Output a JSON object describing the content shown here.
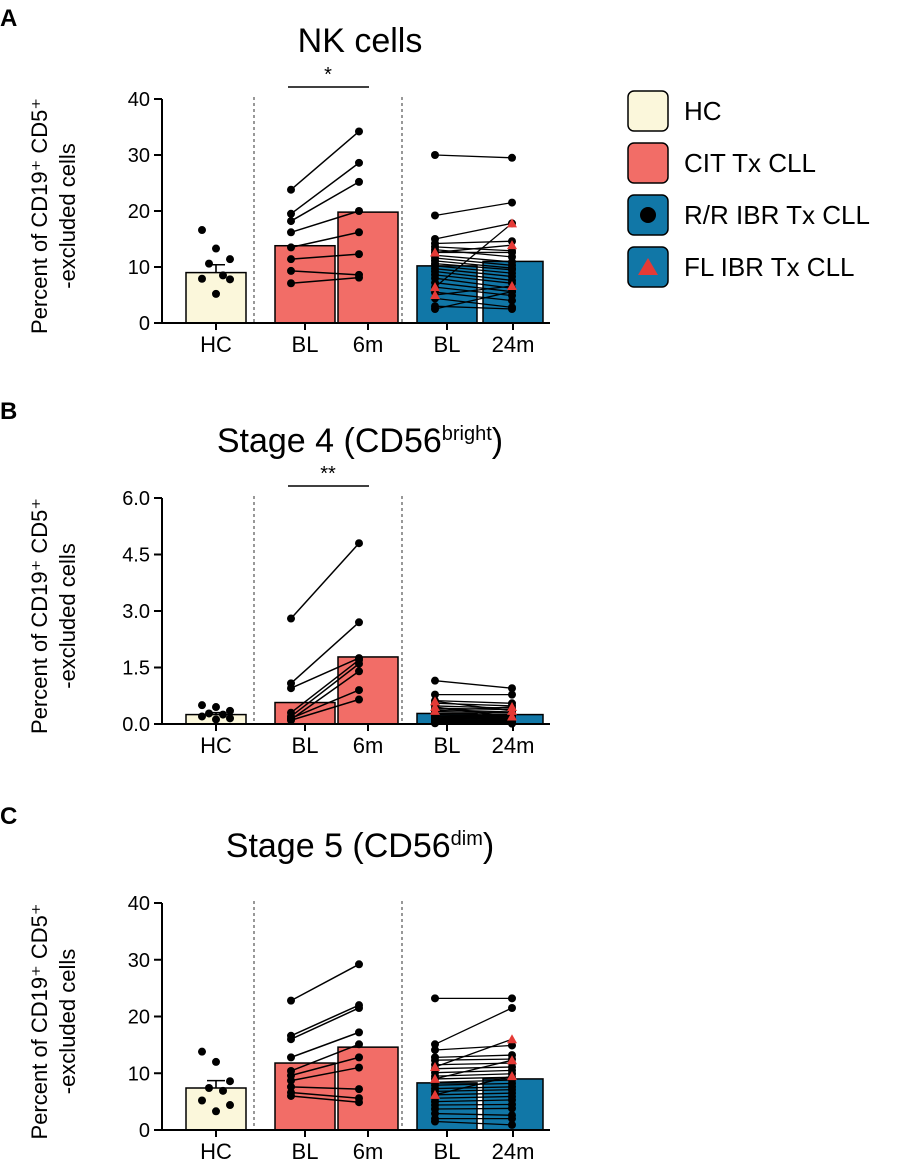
{
  "colors": {
    "hc": "#fbf7db",
    "cit": "#f26d67",
    "ibr": "#1177a7",
    "fl_marker": "#e53a36",
    "axis": "#000000"
  },
  "categories": [
    "HC",
    "BL",
    "6m",
    "BL",
    "24m"
  ],
  "legend": {
    "items": [
      {
        "label": "HC",
        "fill": "#fbf7db",
        "marker": "none"
      },
      {
        "label": "CIT Tx CLL",
        "fill": "#f26d67",
        "marker": "none"
      },
      {
        "label": "R/R IBR Tx CLL",
        "fill": "#1177a7",
        "marker": "circle"
      },
      {
        "label": "FL IBR Tx CLL",
        "fill": "#1177a7",
        "marker": "triangle"
      }
    ]
  },
  "chart_data": [
    {
      "type": "bar",
      "panel": "A",
      "title": "NK cells",
      "title_sup": "",
      "ylabel_line1": "Percent of CD19⁺ CD5⁺",
      "ylabel_line2": "-excluded cells",
      "ylim": [
        0,
        40
      ],
      "yticks": [
        "0",
        "10",
        "20",
        "30",
        "40"
      ],
      "ytick_values": [
        0,
        10,
        20,
        30,
        40
      ],
      "bars": [
        9.0,
        13.8,
        19.8,
        10.2,
        11.0
      ],
      "sem": [
        1.4,
        0,
        0,
        0,
        0
      ],
      "significance": "*",
      "hc_points": [
        16.6,
        13.3,
        11.4,
        10.6,
        8.5,
        7.9,
        7.8,
        5.2
      ],
      "cit_pairs": [
        [
          23.8,
          34.2
        ],
        [
          19.5,
          28.6
        ],
        [
          18.2,
          25.2
        ],
        [
          16.2,
          20.0
        ],
        [
          13.5,
          16.2
        ],
        [
          11.4,
          12.3
        ],
        [
          9.3,
          8.6
        ],
        [
          7.1,
          8.1
        ]
      ],
      "ibr_pairs": [
        [
          30.0,
          29.5
        ],
        [
          19.2,
          21.5
        ],
        [
          15.0,
          17.8
        ],
        [
          14.2,
          14.6
        ],
        [
          13.6,
          12.9
        ],
        [
          13.1,
          11.8
        ],
        [
          12.6,
          12.6
        ],
        [
          12.1,
          10.9
        ],
        [
          11.6,
          10.3
        ],
        [
          11.1,
          9.8
        ],
        [
          10.6,
          9.5
        ],
        [
          10.2,
          8.9
        ],
        [
          9.7,
          8.3
        ],
        [
          9.2,
          7.6
        ],
        [
          8.6,
          7.1
        ],
        [
          8.0,
          6.2
        ],
        [
          7.2,
          5.6
        ],
        [
          6.4,
          4.9
        ],
        [
          5.5,
          4.0
        ],
        [
          4.4,
          2.8
        ],
        [
          3.0,
          2.5
        ],
        [
          2.5,
          5.6
        ]
      ],
      "fl_pairs": [
        [
          12.6,
          13.9
        ],
        [
          6.4,
          17.8
        ],
        [
          5.0,
          6.6
        ]
      ]
    },
    {
      "type": "bar",
      "panel": "B",
      "title": "Stage 4 (CD56",
      "title_sup": "bright",
      "title_suffix": ")",
      "ylabel_line1": "Percent of CD19⁺ CD5⁺",
      "ylabel_line2": "-excluded cells",
      "ylim": [
        0,
        6
      ],
      "yticks": [
        "0.0",
        "1.5",
        "3.0",
        "4.5",
        "6.0"
      ],
      "ytick_values": [
        0,
        1.5,
        3,
        4.5,
        6
      ],
      "bars": [
        0.25,
        0.57,
        1.78,
        0.28,
        0.25
      ],
      "sem": [
        0.05,
        0,
        0,
        0,
        0
      ],
      "significance": "**",
      "hc_points": [
        0.5,
        0.45,
        0.35,
        0.28,
        0.25,
        0.2,
        0.15,
        0.12
      ],
      "cit_pairs": [
        [
          2.8,
          4.8
        ],
        [
          1.08,
          2.7
        ],
        [
          0.95,
          1.75
        ],
        [
          0.3,
          1.7
        ],
        [
          0.2,
          1.6
        ],
        [
          0.12,
          1.4
        ],
        [
          0.15,
          0.9
        ],
        [
          0.1,
          0.65
        ]
      ],
      "ibr_pairs": [
        [
          1.15,
          0.95
        ],
        [
          0.78,
          0.78
        ],
        [
          0.62,
          0.55
        ],
        [
          0.55,
          0.48
        ],
        [
          0.48,
          0.42
        ],
        [
          0.42,
          0.38
        ],
        [
          0.38,
          0.32
        ],
        [
          0.33,
          0.3
        ],
        [
          0.28,
          0.26
        ],
        [
          0.25,
          0.22
        ],
        [
          0.22,
          0.2
        ],
        [
          0.2,
          0.18
        ],
        [
          0.18,
          0.15
        ],
        [
          0.15,
          0.13
        ],
        [
          0.12,
          0.11
        ],
        [
          0.1,
          0.09
        ],
        [
          0.08,
          0.07
        ],
        [
          0.06,
          0.05
        ],
        [
          0.05,
          0.04
        ],
        [
          0.04,
          0.03
        ],
        [
          0.03,
          0.02
        ],
        [
          0.02,
          0.01
        ]
      ],
      "fl_pairs": [
        [
          0.6,
          0.35
        ],
        [
          0.35,
          0.45
        ],
        [
          0.45,
          0.2
        ]
      ]
    },
    {
      "type": "bar",
      "panel": "C",
      "title": "Stage 5 (CD56",
      "title_sup": "dim",
      "title_suffix": ")",
      "ylabel_line1": "Percent of CD19⁺ CD5⁺",
      "ylabel_line2": "-excluded cells",
      "ylim": [
        0,
        40
      ],
      "yticks": [
        "0",
        "10",
        "20",
        "30",
        "40"
      ],
      "ytick_values": [
        0,
        10,
        20,
        30,
        40
      ],
      "bars": [
        7.4,
        11.8,
        14.6,
        8.3,
        9.0
      ],
      "sem": [
        1.3,
        0,
        0,
        0,
        0
      ],
      "significance": "",
      "hc_points": [
        13.8,
        12.0,
        8.6,
        7.4,
        6.9,
        5.2,
        4.4,
        3.3
      ],
      "cit_pairs": [
        [
          22.8,
          29.2
        ],
        [
          16.6,
          22.0
        ],
        [
          16.0,
          21.5
        ],
        [
          12.8,
          17.2
        ],
        [
          10.4,
          15.1
        ],
        [
          9.6,
          12.8
        ],
        [
          8.7,
          11.0
        ],
        [
          7.6,
          7.2
        ],
        [
          6.6,
          5.6
        ],
        [
          6.0,
          4.9
        ]
      ],
      "ibr_pairs": [
        [
          23.2,
          23.2
        ],
        [
          15.1,
          21.5
        ],
        [
          14.1,
          14.9
        ],
        [
          12.8,
          13.2
        ],
        [
          12.3,
          12.5
        ],
        [
          11.5,
          11.8
        ],
        [
          10.8,
          11.1
        ],
        [
          10.1,
          10.5
        ],
        [
          9.5,
          9.9
        ],
        [
          9.0,
          9.3
        ],
        [
          8.4,
          8.8
        ],
        [
          7.9,
          8.2
        ],
        [
          7.3,
          7.6
        ],
        [
          6.8,
          7.1
        ],
        [
          6.2,
          6.5
        ],
        [
          5.6,
          5.9
        ],
        [
          5.0,
          5.3
        ],
        [
          4.4,
          4.5
        ],
        [
          3.7,
          3.8
        ],
        [
          2.9,
          2.6
        ],
        [
          2.0,
          2.0
        ],
        [
          1.5,
          0.9
        ]
      ],
      "fl_pairs": [
        [
          11.1,
          16.0
        ],
        [
          9.0,
          12.3
        ],
        [
          6.2,
          9.5
        ]
      ]
    }
  ]
}
